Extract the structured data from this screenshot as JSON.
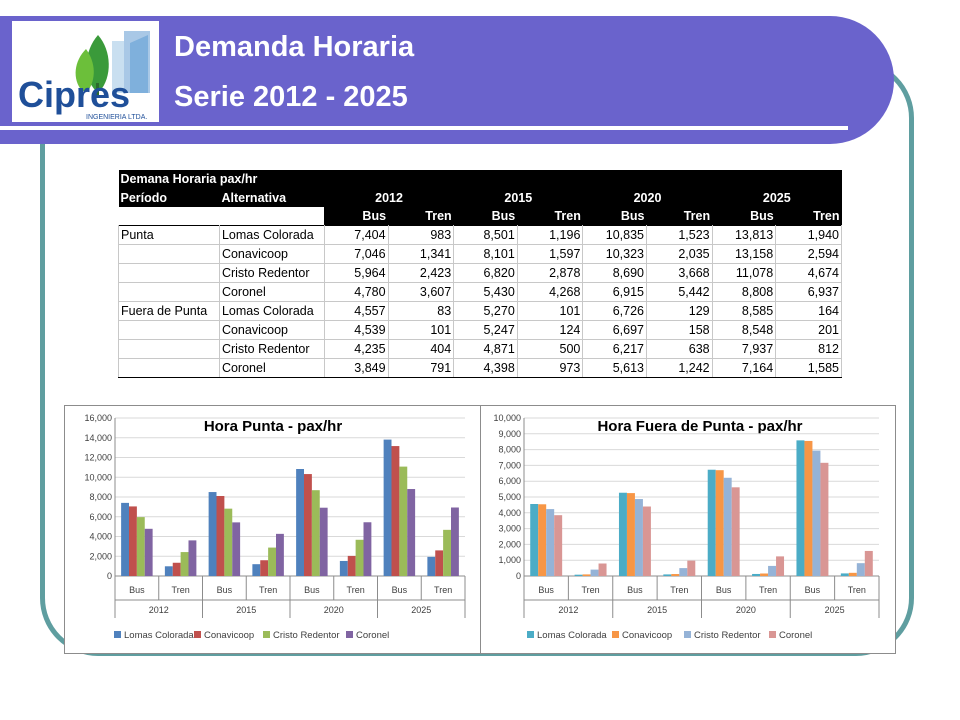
{
  "header": {
    "title_line1": "Demanda Horaria",
    "title_line2": "Serie 2012 - 2025",
    "logo_text": "Cipres",
    "logo_subtext": "INGENIERIA LTDA.",
    "colors": {
      "band": "#6a63cc",
      "frame": "#5f9ea0",
      "logo_blue": "#1f4f99",
      "logo_green": "#3a9a3a"
    }
  },
  "table": {
    "title": "Demana Horaria pax/hr",
    "col_periodo": "Período",
    "col_alternativa": "Alternativa",
    "years": [
      "2012",
      "2015",
      "2020",
      "2025"
    ],
    "modes": [
      "Bus",
      "Tren"
    ],
    "groups": [
      {
        "period": "Punta",
        "rows": [
          {
            "alt": "Lomas Colorada",
            "values": [
              "7,404",
              "983",
              "8,501",
              "1,196",
              "10,835",
              "1,523",
              "13,813",
              "1,940"
            ]
          },
          {
            "alt": "Conavicoop",
            "values": [
              "7,046",
              "1,341",
              "8,101",
              "1,597",
              "10,323",
              "2,035",
              "13,158",
              "2,594"
            ]
          },
          {
            "alt": "Cristo Redentor",
            "values": [
              "5,964",
              "2,423",
              "6,820",
              "2,878",
              "8,690",
              "3,668",
              "11,078",
              "4,674"
            ]
          },
          {
            "alt": "Coronel",
            "values": [
              "4,780",
              "3,607",
              "5,430",
              "4,268",
              "6,915",
              "5,442",
              "8,808",
              "6,937"
            ]
          }
        ]
      },
      {
        "period": "Fuera de Punta",
        "rows": [
          {
            "alt": "Lomas Colorada",
            "values": [
              "4,557",
              "83",
              "5,270",
              "101",
              "6,726",
              "129",
              "8,585",
              "164"
            ]
          },
          {
            "alt": "Conavicoop",
            "values": [
              "4,539",
              "101",
              "5,247",
              "124",
              "6,697",
              "158",
              "8,548",
              "201"
            ]
          },
          {
            "alt": "Cristo Redentor",
            "values": [
              "4,235",
              "404",
              "4,871",
              "500",
              "6,217",
              "638",
              "7,937",
              "812"
            ]
          },
          {
            "alt": "Coronel",
            "values": [
              "3,849",
              "791",
              "4,398",
              "973",
              "5,613",
              "1,242",
              "7,164",
              "1,585"
            ]
          }
        ]
      }
    ]
  },
  "chart_data": [
    {
      "type": "bar",
      "title": "Hora Punta - pax/hr",
      "xlabel": "",
      "ylabel": "",
      "ylim": [
        0,
        16000
      ],
      "yticks": [
        0,
        2000,
        4000,
        6000,
        8000,
        10000,
        12000,
        14000,
        16000
      ],
      "ytick_labels": [
        "0",
        "2,000",
        "4,000",
        "6,000",
        "8,000",
        "10,000",
        "12,000",
        "14,000",
        "16,000"
      ],
      "grid": true,
      "legend_position": "bottom",
      "categories": [
        "Bus",
        "Tren",
        "Bus",
        "Tren",
        "Bus",
        "Tren",
        "Bus",
        "Tren"
      ],
      "category_groups": [
        "2012",
        "2015",
        "2020",
        "2025"
      ],
      "series": [
        {
          "name": "Lomas Colorada",
          "color": "#4f81bd",
          "values": [
            7404,
            983,
            8501,
            1196,
            10835,
            1523,
            13813,
            1940
          ]
        },
        {
          "name": "Conavicoop",
          "color": "#c0504d",
          "values": [
            7046,
            1341,
            8101,
            1597,
            10323,
            2035,
            13158,
            2594
          ]
        },
        {
          "name": "Cristo Redentor",
          "color": "#9bbb59",
          "values": [
            5964,
            2423,
            6820,
            2878,
            8690,
            3668,
            11078,
            4674
          ]
        },
        {
          "name": "Coronel",
          "color": "#8064a2",
          "values": [
            4780,
            3607,
            5430,
            4268,
            6915,
            5442,
            8808,
            6937
          ]
        }
      ]
    },
    {
      "type": "bar",
      "title": "Hora Fuera de Punta - pax/hr",
      "xlabel": "",
      "ylabel": "",
      "ylim": [
        0,
        10000
      ],
      "yticks": [
        0,
        1000,
        2000,
        3000,
        4000,
        5000,
        6000,
        7000,
        8000,
        9000,
        10000
      ],
      "ytick_labels": [
        "0",
        "1,000",
        "2,000",
        "3,000",
        "4,000",
        "5,000",
        "6,000",
        "7,000",
        "8,000",
        "9,000",
        "10,000"
      ],
      "grid": true,
      "legend_position": "bottom",
      "categories": [
        "Bus",
        "Tren",
        "Bus",
        "Tren",
        "Bus",
        "Tren",
        "Bus",
        "Tren"
      ],
      "category_groups": [
        "2012",
        "2015",
        "2020",
        "2025"
      ],
      "series": [
        {
          "name": "Lomas Colorada",
          "color": "#4bacc6",
          "values": [
            4557,
            83,
            5270,
            101,
            6726,
            129,
            8585,
            164
          ]
        },
        {
          "name": "Conavicoop",
          "color": "#f79646",
          "values": [
            4539,
            101,
            5247,
            124,
            6697,
            158,
            8548,
            201
          ]
        },
        {
          "name": "Cristo Redentor",
          "color": "#95b3d7",
          "values": [
            4235,
            404,
            4871,
            500,
            6217,
            638,
            7937,
            812
          ]
        },
        {
          "name": "Coronel",
          "color": "#d99694",
          "values": [
            3849,
            791,
            4398,
            973,
            5613,
            1242,
            7164,
            1585
          ]
        }
      ]
    }
  ]
}
